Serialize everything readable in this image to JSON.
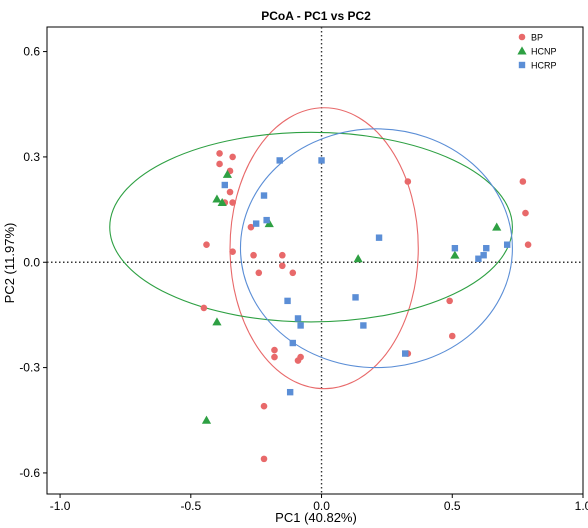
{
  "chart_data": {
    "type": "scatter",
    "title": "PCoA - PC1 vs PC2",
    "xlabel": "PC1 (40.82%)",
    "ylabel": "PC2 (11.97%)",
    "xlim": [
      -1.05,
      1.0
    ],
    "ylim": [
      -0.66,
      0.67
    ],
    "xticks": [
      -1.0,
      -0.5,
      0.0,
      0.5,
      1.0
    ],
    "xtick_labels": [
      "-1.0",
      "-0.5",
      "0.0",
      "0.5",
      "1.0"
    ],
    "yticks": [
      -0.6,
      -0.3,
      0.0,
      0.3,
      0.6
    ],
    "ytick_labels": [
      "-0.6",
      "-0.3",
      "0.0",
      "0.3",
      "0.6"
    ],
    "grid": false,
    "reference_lines": {
      "x": 0,
      "y": 0,
      "style": "dotted"
    },
    "legend_position": "top-right",
    "series": [
      {
        "name": "BP",
        "shape": "circle",
        "color": "#e8696a",
        "points": [
          [
            -0.39,
            0.31
          ],
          [
            -0.34,
            0.3
          ],
          [
            -0.39,
            0.28
          ],
          [
            -0.35,
            0.26
          ],
          [
            -0.35,
            0.2
          ],
          [
            -0.37,
            0.17
          ],
          [
            -0.34,
            0.17
          ],
          [
            -0.27,
            0.1
          ],
          [
            -0.44,
            0.05
          ],
          [
            -0.34,
            0.03
          ],
          [
            -0.26,
            0.02
          ],
          [
            -0.15,
            0.02
          ],
          [
            -0.15,
            -0.01
          ],
          [
            -0.24,
            -0.03
          ],
          [
            -0.11,
            -0.03
          ],
          [
            -0.45,
            -0.13
          ],
          [
            -0.18,
            -0.25
          ],
          [
            -0.08,
            -0.27
          ],
          [
            -0.18,
            -0.27
          ],
          [
            -0.09,
            -0.28
          ],
          [
            -0.22,
            -0.41
          ],
          [
            -0.22,
            -0.56
          ],
          [
            0.33,
            0.23
          ],
          [
            0.77,
            0.23
          ],
          [
            0.78,
            0.14
          ],
          [
            0.79,
            0.05
          ],
          [
            0.49,
            -0.11
          ],
          [
            0.5,
            -0.21
          ],
          [
            0.33,
            -0.26
          ]
        ]
      },
      {
        "name": "HCNP",
        "shape": "triangle",
        "color": "#2ea043",
        "points": [
          [
            -0.36,
            0.25
          ],
          [
            -0.4,
            0.18
          ],
          [
            -0.38,
            0.17
          ],
          [
            -0.2,
            0.11
          ],
          [
            -0.4,
            -0.17
          ],
          [
            -0.44,
            -0.45
          ],
          [
            0.14,
            0.01
          ],
          [
            0.51,
            0.02
          ],
          [
            0.67,
            0.1
          ]
        ]
      },
      {
        "name": "HCRP",
        "shape": "square",
        "color": "#5b8ed6",
        "points": [
          [
            -0.16,
            0.29
          ],
          [
            0.0,
            0.29
          ],
          [
            -0.37,
            0.22
          ],
          [
            -0.22,
            0.19
          ],
          [
            -0.25,
            0.11
          ],
          [
            -0.21,
            0.12
          ],
          [
            0.22,
            0.07
          ],
          [
            0.51,
            0.04
          ],
          [
            0.63,
            0.04
          ],
          [
            0.62,
            0.02
          ],
          [
            0.6,
            0.01
          ],
          [
            0.71,
            0.05
          ],
          [
            -0.13,
            -0.11
          ],
          [
            -0.09,
            -0.16
          ],
          [
            -0.08,
            -0.18
          ],
          [
            0.13,
            -0.1
          ],
          [
            0.16,
            -0.18
          ],
          [
            -0.11,
            -0.23
          ],
          [
            0.32,
            -0.26
          ],
          [
            -0.12,
            -0.37
          ]
        ]
      }
    ],
    "ellipses": [
      {
        "series": "BP",
        "color": "#e8696a",
        "cx": 0.01,
        "cy": 0.04,
        "rx": 0.36,
        "ry": 0.4
      },
      {
        "series": "HCNP",
        "color": "#2ea043",
        "cx": -0.04,
        "cy": 0.1,
        "rx": 0.77,
        "ry": 0.27
      },
      {
        "series": "HCRP",
        "color": "#5b8ed6",
        "cx": 0.21,
        "cy": 0.04,
        "rx": 0.52,
        "ry": 0.34
      }
    ]
  }
}
